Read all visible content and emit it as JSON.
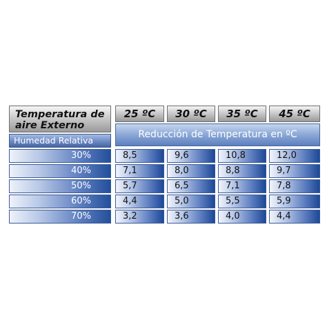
{
  "table": {
    "corner_title": "Temperatura de aire Externo",
    "temperatures": [
      "25 ºC",
      "30 ºC",
      "35 ºC",
      "45 ºC"
    ],
    "banner": "Reducción de Temperatura en ºC",
    "humidity_label": "Humedad Relativa",
    "rows": [
      {
        "humidity": "30%",
        "values": [
          "8,5",
          "9,6",
          "10,8",
          "12,0"
        ]
      },
      {
        "humidity": "40%",
        "values": [
          "7,1",
          "8,0",
          "8,8",
          "9,7"
        ]
      },
      {
        "humidity": "50%",
        "values": [
          "5,7",
          "6,5",
          "7,1",
          "7,8"
        ]
      },
      {
        "humidity": "60%",
        "values": [
          "4,4",
          "5,0",
          "5,5",
          "5,9"
        ]
      },
      {
        "humidity": "70%",
        "values": [
          "3,2",
          "3,6",
          "4,0",
          "4,4"
        ]
      }
    ]
  }
}
